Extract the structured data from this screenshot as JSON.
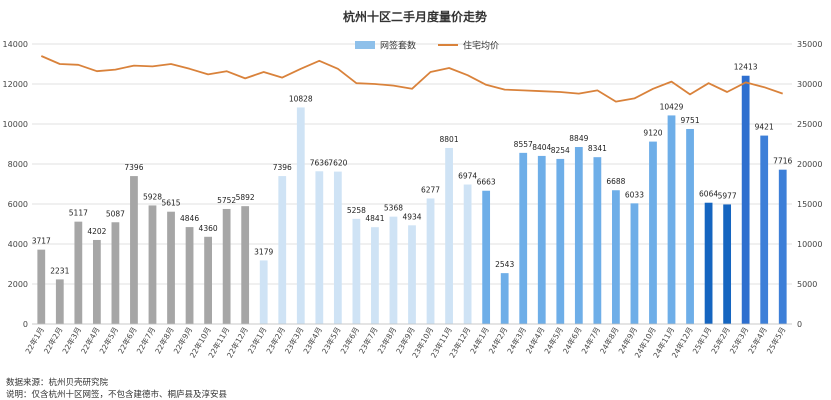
{
  "chart_data": {
    "type": "bar",
    "title": "杭州十区二手月度量价走势",
    "categories": [
      "22年1月",
      "22年2月",
      "22年3月",
      "22年4月",
      "22年5月",
      "22年6月",
      "22年7月",
      "22年8月",
      "22年9月",
      "22年10月",
      "22年11月",
      "22年12月",
      "23年1月",
      "23年2月",
      "23年3月",
      "23年4月",
      "23年5月",
      "23年6月",
      "23年7月",
      "23年8月",
      "23年9月",
      "23年10月",
      "23年11月",
      "23年12月",
      "24年1月",
      "24年2月",
      "24年3月",
      "24年4月",
      "24年5月",
      "24年6月",
      "24年7月",
      "24年8月",
      "24年9月",
      "24年10月",
      "24年11月",
      "24年12月",
      "25年1月",
      "25年2月",
      "25年3月",
      "25年4月",
      "25年5月"
    ],
    "series": [
      {
        "name": "网签套数",
        "kind": "bar",
        "axis": "left",
        "values": [
          3717,
          2231,
          5117,
          4202,
          5087,
          7396,
          5928,
          5615,
          4846,
          4360,
          5752,
          5892,
          3179,
          7396,
          10828,
          7636,
          7620,
          5258,
          4841,
          5368,
          4934,
          6277,
          8801,
          6974,
          6663,
          2543,
          8557,
          8404,
          8254,
          8849,
          8341,
          6688,
          6033,
          9120,
          10429,
          9751,
          6064,
          5977,
          12413,
          9421,
          7716
        ],
        "colors": {
          "2022": "#a6a6a6",
          "2023": "#cfe3f5",
          "2024": "#6eaee8",
          "2025": "#1f67c7"
        },
        "color_groups": [
          {
            "from": 0,
            "to": 11,
            "color": "#a6a6a6"
          },
          {
            "from": 12,
            "to": 23,
            "color": "#cfe3f5"
          },
          {
            "from": 24,
            "to": 35,
            "color": "#6eaee8"
          },
          {
            "from": 36,
            "to": 37,
            "color": "#1565c0"
          },
          {
            "from": 38,
            "to": 38,
            "color": "#2e6fcf"
          },
          {
            "from": 39,
            "to": 40,
            "color": "#3d7fd8"
          }
        ]
      },
      {
        "name": "住宅均价",
        "kind": "line",
        "axis": "right",
        "color": "#d9823b",
        "values": [
          33500,
          32500,
          32400,
          31600,
          31800,
          32300,
          32200,
          32500,
          31900,
          31200,
          31600,
          30700,
          31500,
          30800,
          31900,
          32900,
          31900,
          30100,
          30000,
          29800,
          29400,
          31500,
          32000,
          31100,
          29900,
          29300,
          29200,
          29100,
          29000,
          28800,
          29200,
          27800,
          28200,
          29400,
          30300,
          28700,
          30100,
          29000,
          30200,
          29600,
          28800
        ]
      }
    ],
    "y_left": {
      "min": 0,
      "max": 14000,
      "ticks": [
        0,
        2000,
        4000,
        6000,
        8000,
        10000,
        12000,
        14000
      ]
    },
    "y_right": {
      "min": 0,
      "max": 35000,
      "ticks": [
        0,
        5000,
        10000,
        15000,
        20000,
        25000,
        30000,
        35000
      ]
    },
    "grid": true,
    "legend_position": "top-center",
    "bar_labels": true
  },
  "footer": {
    "source": "数据来源：杭州贝壳研究院",
    "note": "说明：仅含杭州十区网签，不包含建德市、桐庐县及淳安县"
  }
}
